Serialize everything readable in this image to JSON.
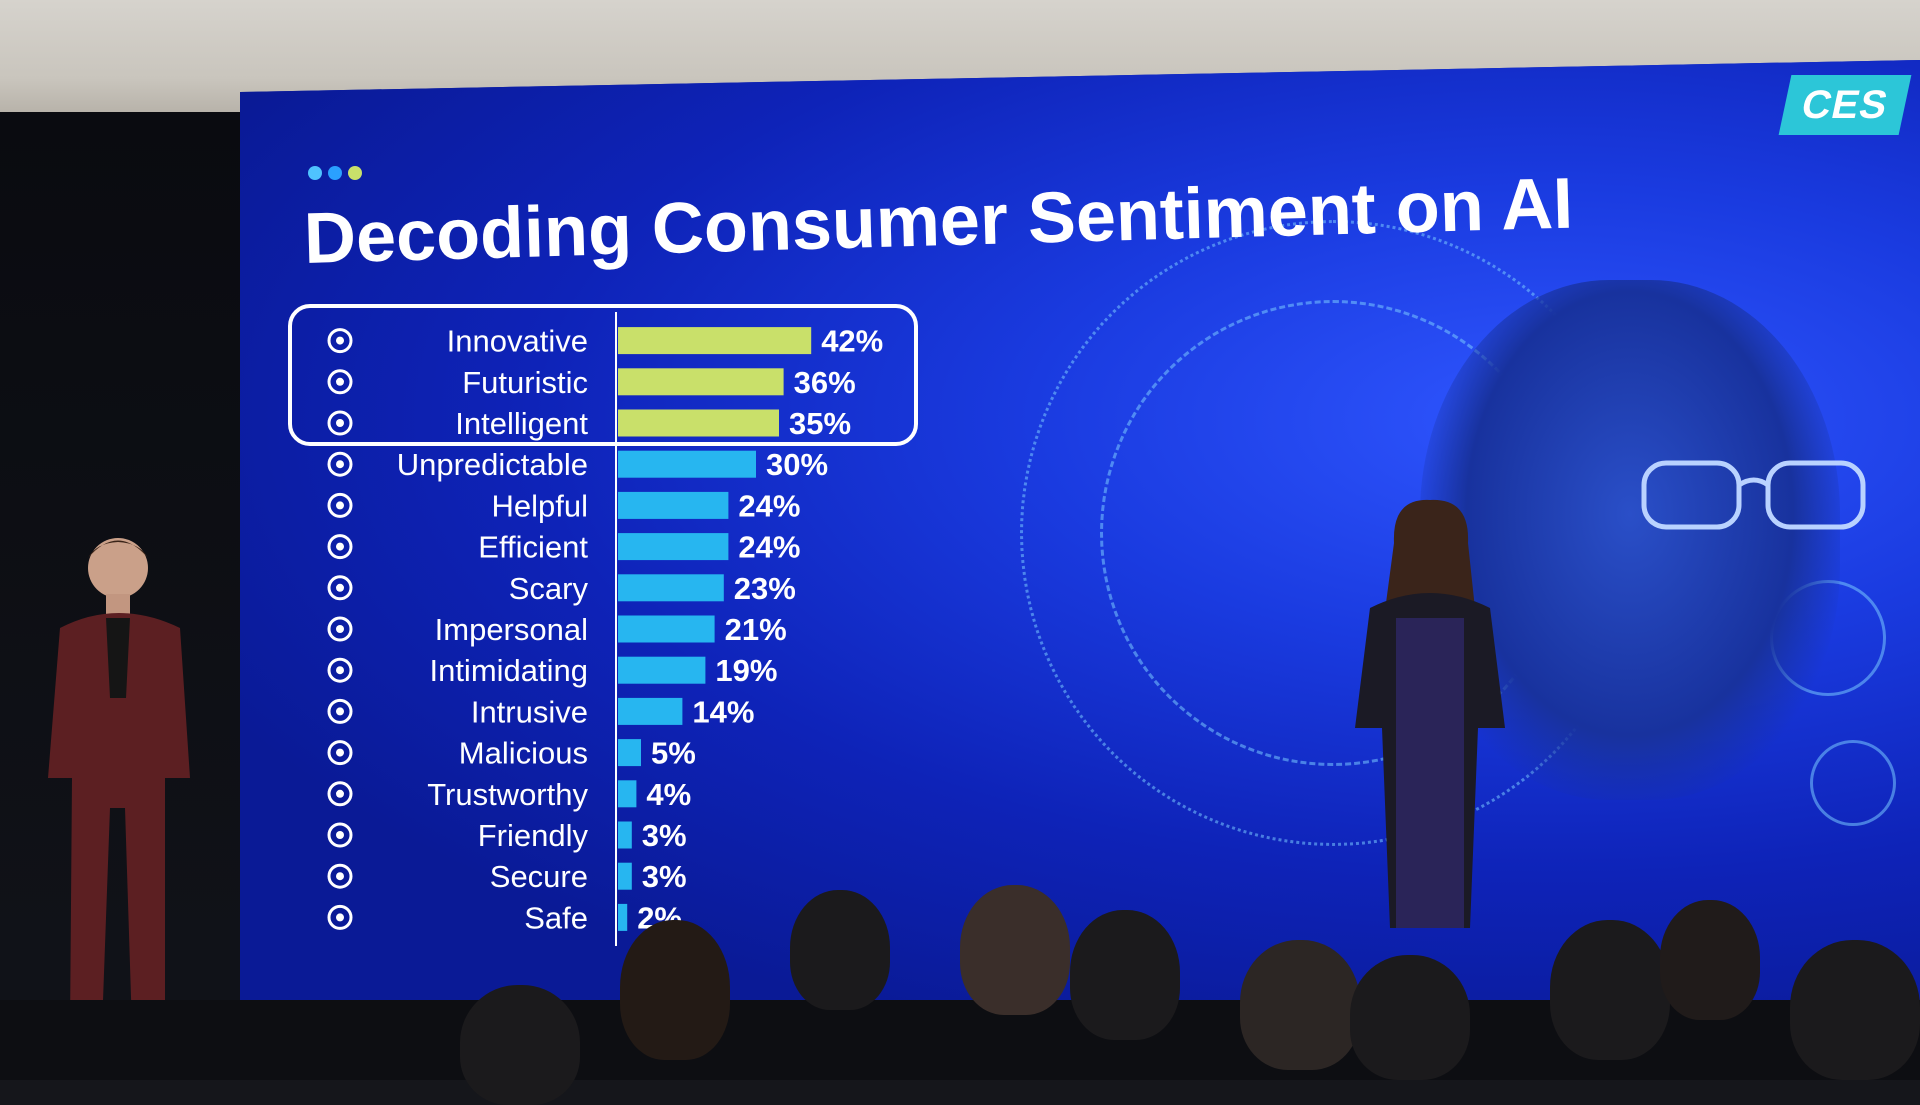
{
  "title": "Decoding Consumer Sentiment on AI",
  "logo_text": "CES",
  "colors": {
    "highlight_bar": "#c9e06a",
    "normal_bar": "#27b6f0",
    "screen_blue": "#0d20b0",
    "dot_1": "#4fc3ff",
    "dot_2": "#2aa0ff",
    "dot_3": "#c9e06a"
  },
  "chart_data": {
    "type": "bar",
    "orientation": "horizontal",
    "categories": [
      "Innovative",
      "Futuristic",
      "Intelligent",
      "Unpredictable",
      "Helpful",
      "Efficient",
      "Scary",
      "Impersonal",
      "Intimidating",
      "Intrusive",
      "Malicious",
      "Trustworthy",
      "Friendly",
      "Secure",
      "Safe"
    ],
    "values": [
      42,
      36,
      35,
      30,
      24,
      24,
      23,
      21,
      19,
      14,
      5,
      4,
      3,
      3,
      2
    ],
    "labels": [
      "42%",
      "36%",
      "35%",
      "30%",
      "24%",
      "24%",
      "23%",
      "21%",
      "19%",
      "14%",
      "5%",
      "4%",
      "3%",
      "3%",
      "2%"
    ],
    "icons": [
      "brain-head-icon",
      "stopwatch-icon",
      "eye-scan-icon",
      "shuffle-cubes-icon",
      "phone-pin-icon",
      "gears-icon",
      "drone-icon",
      "network-icon",
      "spy-icon",
      "webcam-icon",
      "hacker-icon",
      "verified-badge-icon",
      "video-call-icon",
      "shield-check-icon",
      "padlock-icon"
    ],
    "highlighted": [
      0,
      1,
      2
    ],
    "xlim": [
      0,
      45
    ],
    "unit": "%",
    "grid": false,
    "legend": "none"
  }
}
